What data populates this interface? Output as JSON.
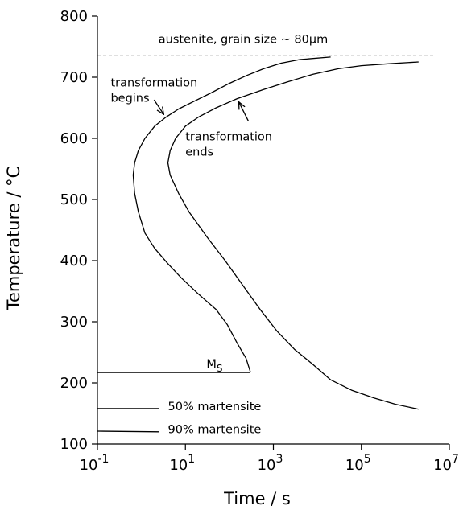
{
  "chart_data": {
    "type": "line",
    "xlabel": "Time / s",
    "ylabel": "Temperature / °C",
    "xscale": "log",
    "xlim": [
      0.1,
      10000000
    ],
    "ylim": [
      100,
      800
    ],
    "x_ticks": [
      {
        "value": 0.1,
        "base": "10",
        "exp": "-1"
      },
      {
        "value": 10,
        "base": "10",
        "exp": "1"
      },
      {
        "value": 1000,
        "base": "10",
        "exp": "3"
      },
      {
        "value": 100000,
        "base": "10",
        "exp": "5"
      },
      {
        "value": 10000000,
        "base": "10",
        "exp": "7"
      }
    ],
    "y_ticks": [
      "100",
      "200",
      "300",
      "400",
      "500",
      "600",
      "700",
      "800"
    ],
    "grid": false,
    "series": [
      {
        "name": "transformation begins",
        "points": [
          [
            20000,
            733
          ],
          [
            4000,
            729
          ],
          [
            1500,
            723
          ],
          [
            600,
            714
          ],
          [
            250,
            703
          ],
          [
            100,
            690
          ],
          [
            40,
            675
          ],
          [
            15,
            660
          ],
          [
            7,
            648
          ],
          [
            3.5,
            634
          ],
          [
            2,
            620
          ],
          [
            1.2,
            600
          ],
          [
            0.85,
            580
          ],
          [
            0.7,
            560
          ],
          [
            0.65,
            540
          ],
          [
            0.7,
            510
          ],
          [
            0.85,
            480
          ],
          [
            1.2,
            445
          ],
          [
            2,
            420
          ],
          [
            4,
            395
          ],
          [
            8,
            372
          ],
          [
            20,
            345
          ],
          [
            50,
            320
          ],
          [
            90,
            295
          ],
          [
            150,
            265
          ],
          [
            240,
            240
          ],
          [
            300,
            218
          ]
        ]
      },
      {
        "name": "transformation ends",
        "points": [
          [
            2000000,
            725
          ],
          [
            400000,
            722
          ],
          [
            100000,
            719
          ],
          [
            30000,
            714
          ],
          [
            8000,
            705
          ],
          [
            2000,
            692
          ],
          [
            600,
            680
          ],
          [
            150,
            665
          ],
          [
            50,
            650
          ],
          [
            20,
            635
          ],
          [
            10,
            620
          ],
          [
            6,
            600
          ],
          [
            4.5,
            580
          ],
          [
            4,
            560
          ],
          [
            4.5,
            540
          ],
          [
            7,
            510
          ],
          [
            12,
            480
          ],
          [
            30,
            440
          ],
          [
            80,
            400
          ],
          [
            200,
            360
          ],
          [
            500,
            320
          ],
          [
            1200,
            285
          ],
          [
            3000,
            255
          ],
          [
            8000,
            230
          ],
          [
            20000,
            205
          ],
          [
            60000,
            188
          ],
          [
            200000,
            175
          ],
          [
            600000,
            165
          ],
          [
            2000000,
            157
          ]
        ]
      },
      {
        "name": "Ms",
        "points": [
          [
            0.1,
            217
          ],
          [
            300,
            217
          ]
        ]
      },
      {
        "name": "50% martensite",
        "points": [
          [
            0.1,
            158
          ],
          [
            2.5,
            158
          ]
        ]
      },
      {
        "name": "90% martensite",
        "points": [
          [
            0.1,
            121
          ],
          [
            2.5,
            120
          ]
        ]
      }
    ],
    "reference_line": {
      "y": 735,
      "style": "dashed",
      "label": "austenite, grain size ~ 80μm"
    },
    "annotations": [
      {
        "id": "begins",
        "lines": [
          "transformation",
          "begins"
        ],
        "at": [
          0.2,
          685
        ],
        "arrow_to": [
          3.5,
          634
        ]
      },
      {
        "id": "ends",
        "lines": [
          "transformation",
          "ends"
        ],
        "at": [
          10,
          597
        ],
        "arrow_to": [
          150,
          665
        ]
      },
      {
        "id": "ms",
        "main": "M",
        "sub": "S",
        "at": [
          30,
          225
        ]
      },
      {
        "id": "m50",
        "text": "50% martensite",
        "at": [
          4,
          155
        ]
      },
      {
        "id": "m90",
        "text": "90% martensite",
        "at": [
          4,
          118
        ]
      }
    ]
  }
}
